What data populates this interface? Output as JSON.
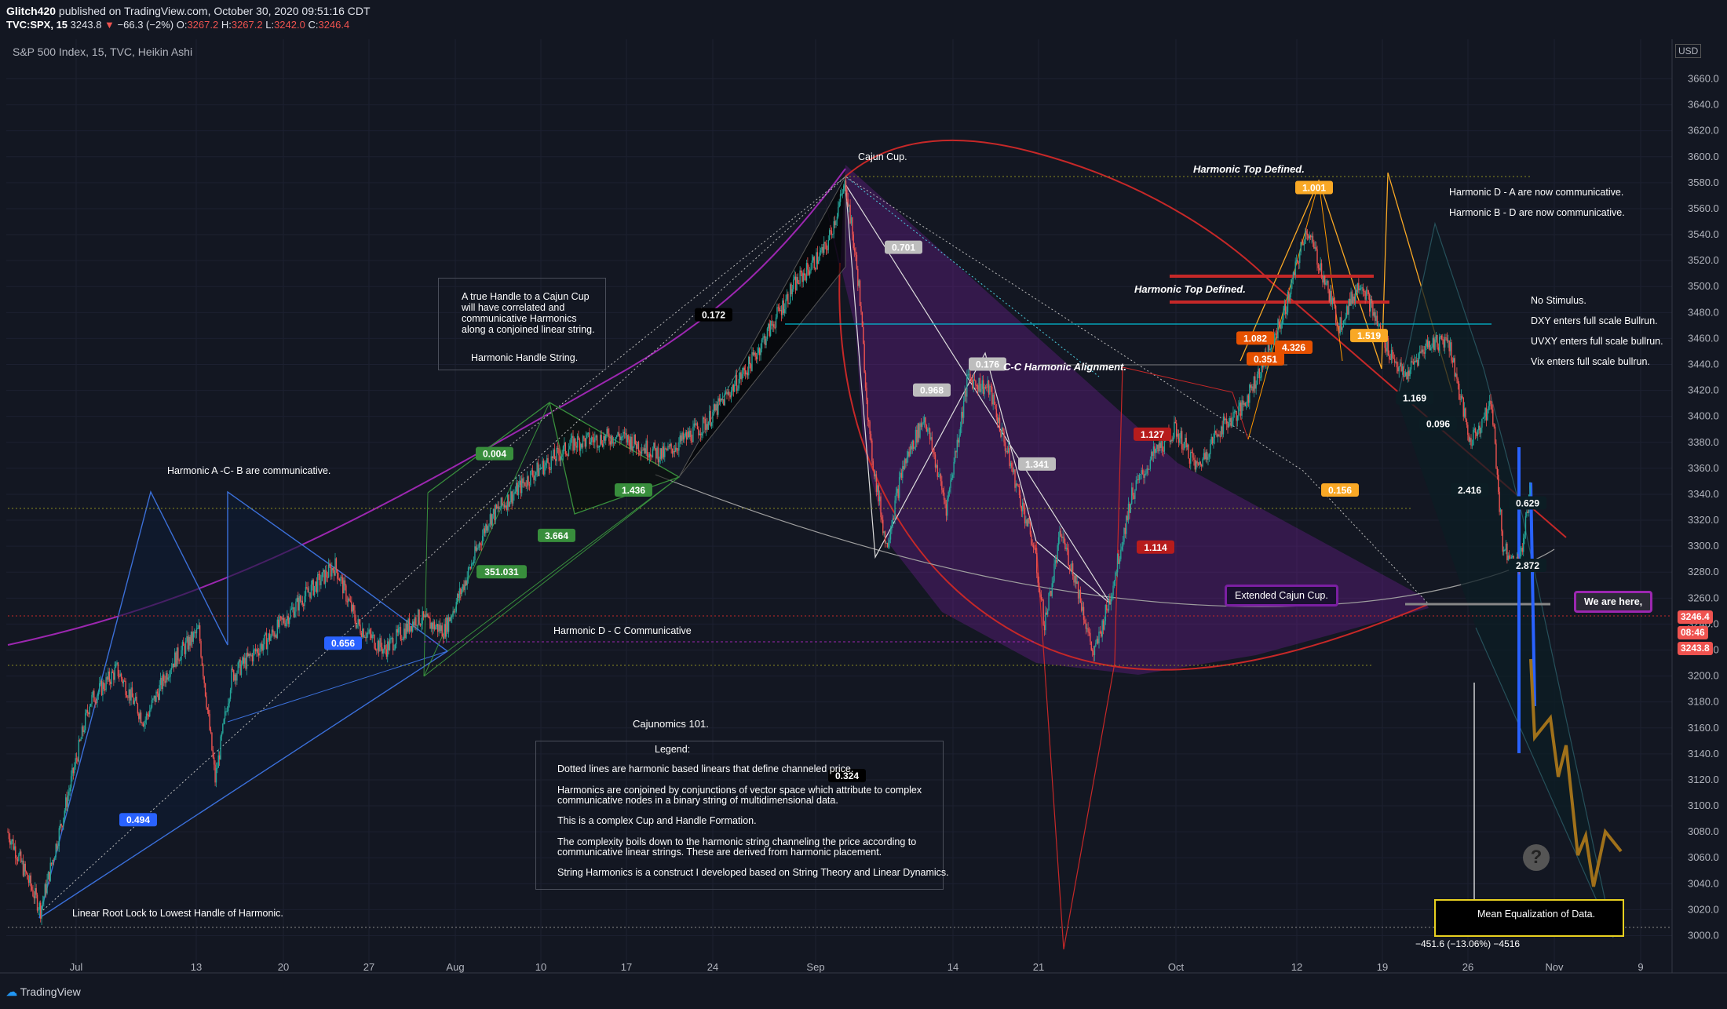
{
  "header": {
    "author": "Glitch420",
    "published": "published on TradingView.com, October 30, 2020 09:51:16 CDT",
    "symbol": "TVC:SPX, 15",
    "last": "3243.8",
    "change": "−66.3 (−2%)",
    "open_label": "O:",
    "open": "3267.2",
    "high_label": "H:",
    "high": "3267.2",
    "low_label": "L:",
    "low": "3242.0",
    "close_label": "C:",
    "close": "3246.4"
  },
  "instrument": "S&P 500 Index, 15, TVC, Heikin Ashi",
  "currency": "USD",
  "brand": "TradingView",
  "price_badges": {
    "current": "3246.4",
    "countdown": "08:46",
    "last": "3243.8"
  },
  "measure_label": "−451.6 (−13.06%) −4516",
  "notes": {
    "handle_text": "A true Handle to a Cajun Cup will have correlated and communicative Harmonics along a conjoined linear string.",
    "handle_title": "Harmonic Handle String.",
    "acb": "Harmonic A -C- B are communicative.",
    "cajun_cup": "Cajun Cup.",
    "top_defined_1": "Harmonic Top Defined.",
    "top_defined_2": "Harmonic Top Defined.",
    "cc_alignment": "C-C Harmonic Alignment.",
    "da": "Harmonic D - A are now communicative.",
    "bd": "Harmonic B - D are now communicative.",
    "no_stimulus": "No Stimulus.",
    "dxy": "DXY enters full scale Bullrun.",
    "uvxy": "UVXY enters full scale bullrun.",
    "vix": "Vix enters full scale bullrun.",
    "dc": "Harmonic D - C Communicative",
    "extended_cup": "Extended Cajun Cup.",
    "we_are_here": "We are here,",
    "linear_root": "Linear Root Lock to Lowest Handle of Harmonic.",
    "mean_eq": "Mean Equalization of Data."
  },
  "legend": {
    "title": "Cajunomics 101.",
    "subtitle": "Legend:",
    "p1": "Dotted lines are harmonic based linears that define channeled price.",
    "p2a": "Harmonics are conjoined by conjunctions of vector space which attribute to complex",
    "p2b": "communicative nodes in a binary string of multidimensional data.",
    "p3": "This is a complex Cup and Handle Formation.",
    "p4a": "The complexity boils down to the harmonic string channeling the price according to",
    "p4b": "communicative linear strings. These are derived from harmonic placement.",
    "p5": "String Harmonics is a construct I developed based on String Theory and Linear Dynamics."
  },
  "colors": {
    "background": "#131722",
    "up": "#26a69a",
    "down": "#ef5350",
    "cup": "#9c27b0",
    "harmonic_blue": "#2962ff",
    "harmonic_green": "#388e3c",
    "harmonic_orange": "#f57c00",
    "harmonic_red": "#c62828"
  },
  "chart_data": {
    "type": "candlestick",
    "price_axis": [
      "3660.0",
      "3640.0",
      "3620.0",
      "3600.0",
      "3580.0",
      "3560.0",
      "3540.0",
      "3520.0",
      "3500.0",
      "3480.0",
      "3460.0",
      "3440.0",
      "3420.0",
      "3400.0",
      "3380.0",
      "3360.0",
      "3340.0",
      "3320.0",
      "3300.0",
      "3280.0",
      "3260.0",
      "3240.0",
      "3220.0",
      "3200.0",
      "3180.0",
      "3160.0",
      "3140.0",
      "3120.0",
      "3100.0",
      "3080.0",
      "3060.0",
      "3040.0",
      "3020.0",
      "3000.0"
    ],
    "ylim": [
      2990,
      3672
    ],
    "time_axis": [
      "Jul",
      "13",
      "20",
      "27",
      "Aug",
      "10",
      "17",
      "24",
      "Sep",
      "14",
      "21",
      "Oct",
      "12",
      "19",
      "26",
      "Nov",
      "9"
    ],
    "path": [
      [
        0,
        3080
      ],
      [
        30,
        3020
      ],
      [
        50,
        3090
      ],
      [
        75,
        3180
      ],
      [
        100,
        3205
      ],
      [
        125,
        3165
      ],
      [
        150,
        3210
      ],
      [
        175,
        3235
      ],
      [
        190,
        3120
      ],
      [
        205,
        3200
      ],
      [
        240,
        3230
      ],
      [
        270,
        3260
      ],
      [
        300,
        3285
      ],
      [
        320,
        3240
      ],
      [
        345,
        3220
      ],
      [
        375,
        3245
      ],
      [
        400,
        3235
      ],
      [
        420,
        3275
      ],
      [
        440,
        3320
      ],
      [
        480,
        3355
      ],
      [
        520,
        3380
      ],
      [
        560,
        3385
      ],
      [
        600,
        3370
      ],
      [
        640,
        3395
      ],
      [
        680,
        3440
      ],
      [
        720,
        3500
      ],
      [
        750,
        3530
      ],
      [
        768,
        3580
      ],
      [
        780,
        3500
      ],
      [
        790,
        3380
      ],
      [
        805,
        3300
      ],
      [
        820,
        3360
      ],
      [
        840,
        3400
      ],
      [
        860,
        3330
      ],
      [
        880,
        3430
      ],
      [
        900,
        3420
      ],
      [
        920,
        3360
      ],
      [
        940,
        3300
      ],
      [
        950,
        3240
      ],
      [
        965,
        3310
      ],
      [
        980,
        3270
      ],
      [
        995,
        3215
      ],
      [
        1010,
        3260
      ],
      [
        1030,
        3340
      ],
      [
        1050,
        3370
      ],
      [
        1070,
        3390
      ],
      [
        1090,
        3360
      ],
      [
        1110,
        3390
      ],
      [
        1130,
        3405
      ],
      [
        1150,
        3440
      ],
      [
        1170,
        3480
      ],
      [
        1190,
        3545
      ],
      [
        1205,
        3510
      ],
      [
        1220,
        3470
      ],
      [
        1240,
        3505
      ],
      [
        1260,
        3460
      ],
      [
        1280,
        3430
      ],
      [
        1300,
        3455
      ],
      [
        1320,
        3460
      ],
      [
        1340,
        3380
      ],
      [
        1360,
        3410
      ],
      [
        1370,
        3300
      ],
      [
        1385,
        3285
      ],
      [
        1395,
        3340
      ]
    ],
    "tags": [
      {
        "text": "0.004",
        "price": 3371
      },
      {
        "text": "1.436",
        "price": 3343
      },
      {
        "text": "3.664",
        "price": 3308
      },
      {
        "text": "351.031",
        "price": 3280
      },
      {
        "text": "0.656",
        "price": 3225
      },
      {
        "text": "0.494",
        "price": 3089
      },
      {
        "text": "0.324",
        "price": 3123
      },
      {
        "text": "0.701",
        "price": 3530
      },
      {
        "text": "0.172",
        "price": 3478
      },
      {
        "text": "0.176",
        "price": 3440
      },
      {
        "text": "0.968",
        "price": 3420
      },
      {
        "text": "1.341",
        "price": 3363
      },
      {
        "text": "1.114",
        "price": 3299
      },
      {
        "text": "1.127",
        "price": 3386
      },
      {
        "text": "0.156",
        "price": 3343
      },
      {
        "text": "1.001",
        "price": 3576
      },
      {
        "text": "1.519",
        "price": 3462
      },
      {
        "text": "1.082",
        "price": 3460
      },
      {
        "text": "4.326",
        "price": 3453
      },
      {
        "text": "0.351",
        "price": 3444
      },
      {
        "text": "0.096",
        "price": 3394
      },
      {
        "text": "1.169",
        "price": 3414
      },
      {
        "text": "2.416",
        "price": 3343
      },
      {
        "text": "0.629",
        "price": 3333
      },
      {
        "text": "2.872",
        "price": 3285
      }
    ]
  }
}
